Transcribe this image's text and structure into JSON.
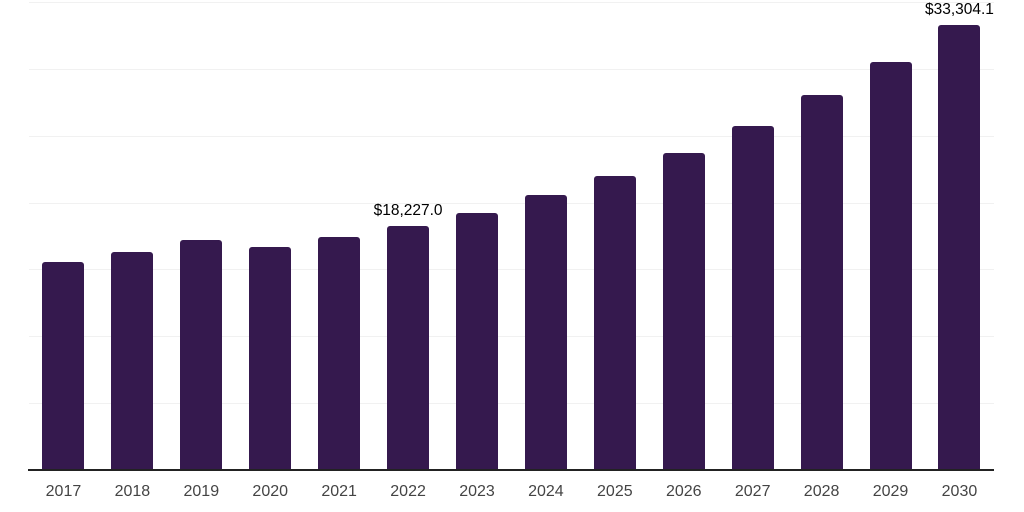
{
  "colors": {
    "background": "#ffffff",
    "bar": "#35194e",
    "gridline": "#f1f1f1",
    "axis_line": "#222222",
    "tick_label": "#444444",
    "data_label": "#000000"
  },
  "chart_data": {
    "type": "bar",
    "title": "",
    "xlabel": "",
    "ylabel": "",
    "categories": [
      "2017",
      "2018",
      "2019",
      "2020",
      "2021",
      "2022",
      "2023",
      "2024",
      "2025",
      "2026",
      "2027",
      "2028",
      "2029",
      "2030"
    ],
    "values": [
      15580,
      16280,
      17200,
      16660,
      17400,
      18227.0,
      19240,
      20570,
      21990,
      23730,
      25750,
      28020,
      30490,
      33304.1
    ],
    "data_labels": [
      null,
      null,
      null,
      null,
      null,
      "$18,227.0",
      null,
      null,
      null,
      null,
      null,
      null,
      null,
      "$33,304.1"
    ],
    "ylim": [
      0,
      35000
    ],
    "gridline_interval": 5000,
    "grid": "horizontal",
    "y_tick_labels_shown": false,
    "legend": "none"
  }
}
